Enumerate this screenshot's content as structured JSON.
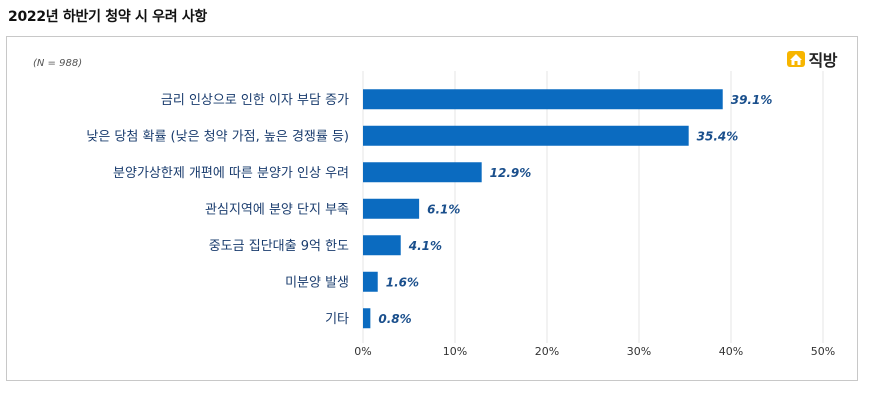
{
  "header": {
    "title": "2022년 하반기 청약 시 우려 사항"
  },
  "chart": {
    "sample_note": "(N = 988)"
  },
  "brand": {
    "name": "직방",
    "icon": "house-logo-icon"
  },
  "colors": {
    "bar": "#0b6bc0",
    "grid": "#e6e6e6",
    "label": "#1a3c6e",
    "value": "#1a4f8c"
  },
  "chart_data": {
    "type": "bar",
    "orientation": "horizontal",
    "title": "2022년 하반기 청약 시 우려 사항",
    "categories": [
      "금리 인상으로 인한 이자 부담 증가",
      "낮은 당첨 확률 (낮은 청약 가점, 높은 경쟁률 등)",
      "분양가상한제 개편에 따른 분양가 인상 우려",
      "관심지역에 분양 단지 부족",
      "중도금 집단대출 9억 한도",
      "미분양 발생",
      "기타"
    ],
    "values": [
      39.1,
      35.4,
      12.9,
      6.1,
      4.1,
      1.6,
      0.8
    ],
    "value_labels": [
      "39.1%",
      "35.4%",
      "12.9%",
      "6.1%",
      "4.1%",
      "1.6%",
      "0.8%"
    ],
    "xticks": [
      "0%",
      "10%",
      "20%",
      "30%",
      "40%",
      "50%"
    ],
    "xlim": [
      0,
      50
    ],
    "grid": true,
    "legend": "none"
  }
}
